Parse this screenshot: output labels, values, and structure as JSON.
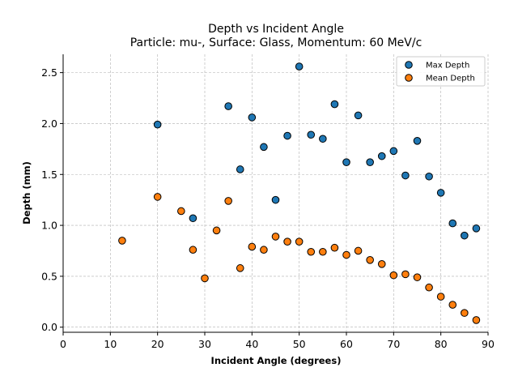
{
  "chart_data": {
    "type": "scatter",
    "title": "Depth vs Incident Angle",
    "subtitle": "Particle: mu-, Surface: Glass, Momentum: 60 MeV/c",
    "xlabel": "Incident Angle (degrees)",
    "ylabel": "Depth (mm)",
    "xlim": [
      0,
      90
    ],
    "ylim": [
      -0.05,
      2.68
    ],
    "xticks": [
      "0",
      "10",
      "20",
      "30",
      "40",
      "50",
      "60",
      "70",
      "80",
      "90"
    ],
    "yticks": [
      "0.0",
      "0.5",
      "1.0",
      "1.5",
      "2.0",
      "2.5"
    ],
    "grid": true,
    "legend_position": "top-right",
    "series": [
      {
        "name": "Max Depth",
        "color": "#1f77b4",
        "x": [
          20,
          27.5,
          35,
          37.5,
          40,
          42.5,
          45,
          47.5,
          50,
          52.5,
          55,
          57.5,
          60,
          62.5,
          65,
          67.5,
          70,
          72.5,
          75,
          77.5,
          80,
          82.5,
          85,
          87.5
        ],
        "y": [
          1.99,
          1.07,
          2.17,
          1.55,
          2.06,
          1.77,
          1.25,
          1.88,
          2.56,
          1.89,
          1.85,
          2.19,
          1.62,
          2.08,
          1.62,
          1.68,
          1.73,
          1.49,
          1.83,
          1.48,
          1.32,
          1.02,
          0.9,
          0.97
        ]
      },
      {
        "name": "Mean Depth",
        "color": "#ff7f0e",
        "x": [
          12.5,
          20,
          25,
          27.5,
          30,
          32.5,
          35,
          37.5,
          40,
          42.5,
          45,
          47.5,
          50,
          52.5,
          55,
          57.5,
          60,
          62.5,
          65,
          67.5,
          70,
          72.5,
          75,
          77.5,
          80,
          82.5,
          85,
          87.5
        ],
        "y": [
          0.85,
          1.28,
          1.14,
          0.76,
          0.48,
          0.95,
          1.24,
          0.58,
          0.79,
          0.76,
          0.89,
          0.84,
          0.84,
          0.74,
          0.74,
          0.78,
          0.71,
          0.75,
          0.66,
          0.62,
          0.51,
          0.52,
          0.49,
          0.39,
          0.3,
          0.22,
          0.14,
          0.07
        ]
      }
    ]
  }
}
